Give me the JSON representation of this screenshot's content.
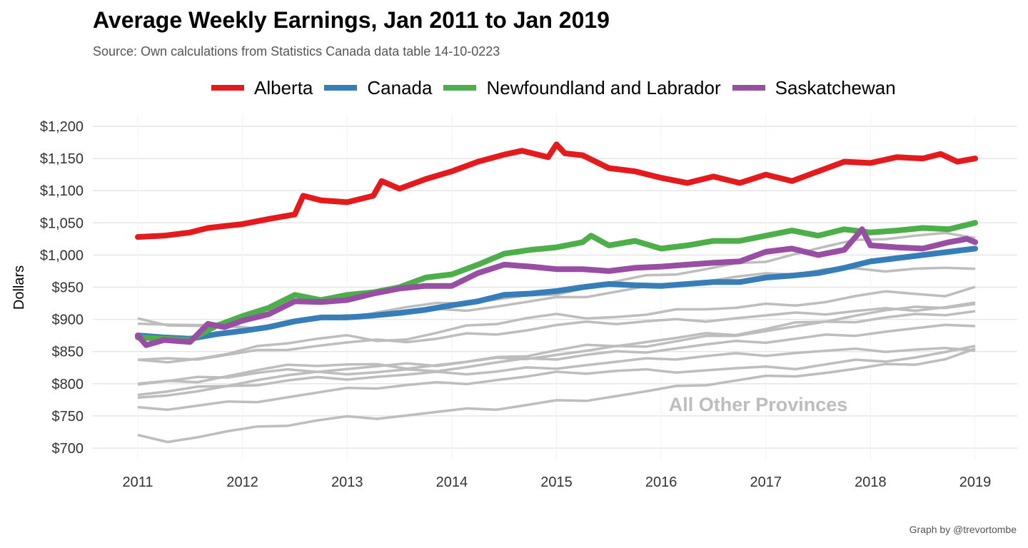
{
  "title": "Average Weekly Earnings, Jan 2011 to Jan 2019",
  "subtitle": "Source: Own calculations from Statistics Canada data table 14-10-0223",
  "caption": "Graph by @trevortombe",
  "legend": [
    {
      "label": "Alberta",
      "color": "#e41a1c"
    },
    {
      "label": "Canada",
      "color": "#377eb8"
    },
    {
      "label": "Newfoundland and Labrador",
      "color": "#4daf4a"
    },
    {
      "label": "Saskatchewan",
      "color": "#984ea3"
    }
  ],
  "chart_data": {
    "type": "line",
    "title": "Average Weekly Earnings, Jan 2011 to Jan 2019",
    "subtitle": "Source: Own calculations from Statistics Canada data table 14-10-0223",
    "xlabel": "",
    "ylabel": "Dollars",
    "xlim": [
      2011,
      2019
    ],
    "ylim": [
      700,
      1200
    ],
    "x_ticks": [
      "2011",
      "2012",
      "2013",
      "2014",
      "2015",
      "2016",
      "2017",
      "2018",
      "2019"
    ],
    "y_ticks": [
      "$700",
      "$750",
      "$800",
      "$850",
      "$900",
      "$950",
      "$1,000",
      "$1,050",
      "$1,100",
      "$1,150",
      "$1,200"
    ],
    "grid": true,
    "legend_position": "top",
    "annotation": "All Other Provinces",
    "highlight_series": [
      {
        "name": "Alberta",
        "color": "#e41a1c",
        "points": [
          [
            2011,
            1028
          ],
          [
            2011.25,
            1030
          ],
          [
            2011.5,
            1035
          ],
          [
            2011.67,
            1042
          ],
          [
            2011.83,
            1045
          ],
          [
            2012,
            1048
          ],
          [
            2012.25,
            1056
          ],
          [
            2012.5,
            1063
          ],
          [
            2012.58,
            1092
          ],
          [
            2012.75,
            1085
          ],
          [
            2013,
            1082
          ],
          [
            2013.25,
            1092
          ],
          [
            2013.33,
            1115
          ],
          [
            2013.5,
            1103
          ],
          [
            2013.75,
            1118
          ],
          [
            2014,
            1130
          ],
          [
            2014.25,
            1145
          ],
          [
            2014.5,
            1156
          ],
          [
            2014.67,
            1162
          ],
          [
            2014.92,
            1152
          ],
          [
            2015,
            1172
          ],
          [
            2015.08,
            1158
          ],
          [
            2015.25,
            1155
          ],
          [
            2015.5,
            1135
          ],
          [
            2015.75,
            1130
          ],
          [
            2016,
            1120
          ],
          [
            2016.25,
            1112
          ],
          [
            2016.5,
            1122
          ],
          [
            2016.75,
            1112
          ],
          [
            2017,
            1125
          ],
          [
            2017.25,
            1115
          ],
          [
            2017.5,
            1130
          ],
          [
            2017.75,
            1145
          ],
          [
            2018,
            1143
          ],
          [
            2018.25,
            1152
          ],
          [
            2018.5,
            1150
          ],
          [
            2018.67,
            1157
          ],
          [
            2018.83,
            1145
          ],
          [
            2019,
            1150
          ]
        ]
      },
      {
        "name": "Canada",
        "color": "#377eb8",
        "points": [
          [
            2011,
            875
          ],
          [
            2011.25,
            872
          ],
          [
            2011.5,
            870
          ],
          [
            2011.75,
            877
          ],
          [
            2012,
            882
          ],
          [
            2012.25,
            888
          ],
          [
            2012.5,
            897
          ],
          [
            2012.75,
            903
          ],
          [
            2013,
            903
          ],
          [
            2013.25,
            906
          ],
          [
            2013.5,
            910
          ],
          [
            2013.75,
            915
          ],
          [
            2014,
            922
          ],
          [
            2014.25,
            928
          ],
          [
            2014.5,
            938
          ],
          [
            2014.75,
            940
          ],
          [
            2015,
            944
          ],
          [
            2015.25,
            950
          ],
          [
            2015.5,
            955
          ],
          [
            2015.75,
            953
          ],
          [
            2016,
            952
          ],
          [
            2016.25,
            955
          ],
          [
            2016.5,
            958
          ],
          [
            2016.75,
            958
          ],
          [
            2017,
            965
          ],
          [
            2017.25,
            968
          ],
          [
            2017.5,
            972
          ],
          [
            2017.75,
            980
          ],
          [
            2018,
            990
          ],
          [
            2018.25,
            995
          ],
          [
            2018.5,
            1000
          ],
          [
            2018.75,
            1005
          ],
          [
            2019,
            1010
          ]
        ]
      },
      {
        "name": "Newfoundland and Labrador",
        "color": "#4daf4a",
        "points": [
          [
            2011,
            872
          ],
          [
            2011.25,
            870
          ],
          [
            2011.5,
            868
          ],
          [
            2011.75,
            890
          ],
          [
            2012,
            905
          ],
          [
            2012.25,
            918
          ],
          [
            2012.5,
            938
          ],
          [
            2012.75,
            930
          ],
          [
            2013,
            938
          ],
          [
            2013.25,
            942
          ],
          [
            2013.5,
            950
          ],
          [
            2013.75,
            965
          ],
          [
            2014,
            970
          ],
          [
            2014.25,
            985
          ],
          [
            2014.5,
            1002
          ],
          [
            2014.75,
            1008
          ],
          [
            2015,
            1012
          ],
          [
            2015.25,
            1020
          ],
          [
            2015.33,
            1030
          ],
          [
            2015.5,
            1015
          ],
          [
            2015.75,
            1022
          ],
          [
            2016,
            1010
          ],
          [
            2016.25,
            1015
          ],
          [
            2016.5,
            1022
          ],
          [
            2016.75,
            1022
          ],
          [
            2017,
            1030
          ],
          [
            2017.25,
            1038
          ],
          [
            2017.5,
            1030
          ],
          [
            2017.75,
            1040
          ],
          [
            2018,
            1035
          ],
          [
            2018.25,
            1038
          ],
          [
            2018.5,
            1042
          ],
          [
            2018.75,
            1040
          ],
          [
            2019,
            1050
          ]
        ]
      },
      {
        "name": "Saskatchewan",
        "color": "#984ea3",
        "points": [
          [
            2011,
            875
          ],
          [
            2011.08,
            860
          ],
          [
            2011.25,
            868
          ],
          [
            2011.5,
            865
          ],
          [
            2011.67,
            893
          ],
          [
            2011.83,
            888
          ],
          [
            2012,
            898
          ],
          [
            2012.25,
            908
          ],
          [
            2012.5,
            928
          ],
          [
            2012.75,
            927
          ],
          [
            2013,
            930
          ],
          [
            2013.25,
            940
          ],
          [
            2013.5,
            948
          ],
          [
            2013.75,
            952
          ],
          [
            2014,
            952
          ],
          [
            2014.25,
            972
          ],
          [
            2014.5,
            985
          ],
          [
            2014.75,
            982
          ],
          [
            2015,
            978
          ],
          [
            2015.25,
            978
          ],
          [
            2015.5,
            975
          ],
          [
            2015.75,
            980
          ],
          [
            2016,
            982
          ],
          [
            2016.25,
            985
          ],
          [
            2016.5,
            988
          ],
          [
            2016.75,
            990
          ],
          [
            2017,
            1005
          ],
          [
            2017.25,
            1010
          ],
          [
            2017.5,
            1000
          ],
          [
            2017.75,
            1008
          ],
          [
            2017.92,
            1040
          ],
          [
            2018,
            1015
          ],
          [
            2018.25,
            1012
          ],
          [
            2018.5,
            1010
          ],
          [
            2018.75,
            1020
          ],
          [
            2018.92,
            1025
          ],
          [
            2019,
            1020
          ]
        ]
      }
    ],
    "other_series": [
      {
        "values": [
          897,
          893,
          890,
          887,
          888,
          893,
          899,
          905,
          912,
          918,
          922,
          927,
          931,
          935,
          942,
          950,
          958,
          965,
          972,
          978,
          985,
          993,
          1003,
          1012,
          1020,
          1027,
          1030,
          1032,
          1030
        ]
      },
      {
        "values": [
          898,
          893,
          890,
          887,
          889,
          894,
          900,
          903,
          907,
          911,
          914,
          917,
          921,
          926,
          931,
          937,
          943,
          949,
          955,
          960,
          965,
          968,
          972,
          978,
          977,
          978,
          980,
          979,
          975
        ]
      },
      {
        "values": [
          835,
          837,
          840,
          845,
          855,
          865,
          870,
          873,
          870,
          870,
          878,
          887,
          895,
          902,
          906,
          905,
          905,
          906,
          912,
          918,
          918,
          922,
          925,
          928,
          935,
          940,
          942,
          936,
          948
        ]
      },
      {
        "values": [
          836,
          836,
          840,
          845,
          850,
          856,
          860,
          863,
          865,
          867,
          870,
          876,
          880,
          884,
          890,
          893,
          895,
          897,
          898,
          900,
          903,
          905,
          907,
          910,
          913,
          915,
          917,
          920,
          925
        ]
      },
      {
        "values": [
          800,
          802,
          806,
          813,
          820,
          826,
          830,
          830,
          828,
          827,
          830,
          833,
          838,
          845,
          852,
          858,
          862,
          866,
          870,
          875,
          878,
          885,
          893,
          900,
          907,
          913,
          916,
          920,
          924
        ]
      },
      {
        "values": [
          800,
          803,
          807,
          812,
          817,
          820,
          822,
          824,
          826,
          828,
          830,
          834,
          838,
          842,
          846,
          850,
          855,
          860,
          866,
          872,
          878,
          883,
          888,
          893,
          898,
          903,
          906,
          910,
          914
        ]
      },
      {
        "values": [
          785,
          788,
          793,
          800,
          807,
          812,
          815,
          817,
          818,
          820,
          823,
          827,
          832,
          836,
          840,
          845,
          848,
          852,
          856,
          860,
          863,
          866,
          870,
          874,
          878,
          882,
          885,
          888,
          892
        ]
      },
      {
        "values": [
          782,
          783,
          787,
          793,
          800,
          805,
          808,
          810,
          812,
          813,
          815,
          817,
          819,
          823,
          827,
          830,
          833,
          836,
          840,
          843,
          845,
          847,
          849,
          850,
          851,
          852,
          853,
          853,
          855
        ]
      },
      {
        "values": [
          760,
          762,
          766,
          770,
          775,
          780,
          785,
          790,
          795,
          798,
          800,
          803,
          807,
          810,
          815,
          818,
          820,
          820,
          821,
          822,
          823,
          823,
          825,
          830,
          835,
          838,
          842,
          848,
          855
        ]
      },
      {
        "values": [
          718,
          713,
          718,
          725,
          730,
          737,
          743,
          747,
          749,
          752,
          755,
          758,
          762,
          767,
          772,
          777,
          782,
          787,
          793,
          800,
          805,
          810,
          815,
          818,
          822,
          827,
          832,
          838,
          852
        ]
      }
    ]
  }
}
